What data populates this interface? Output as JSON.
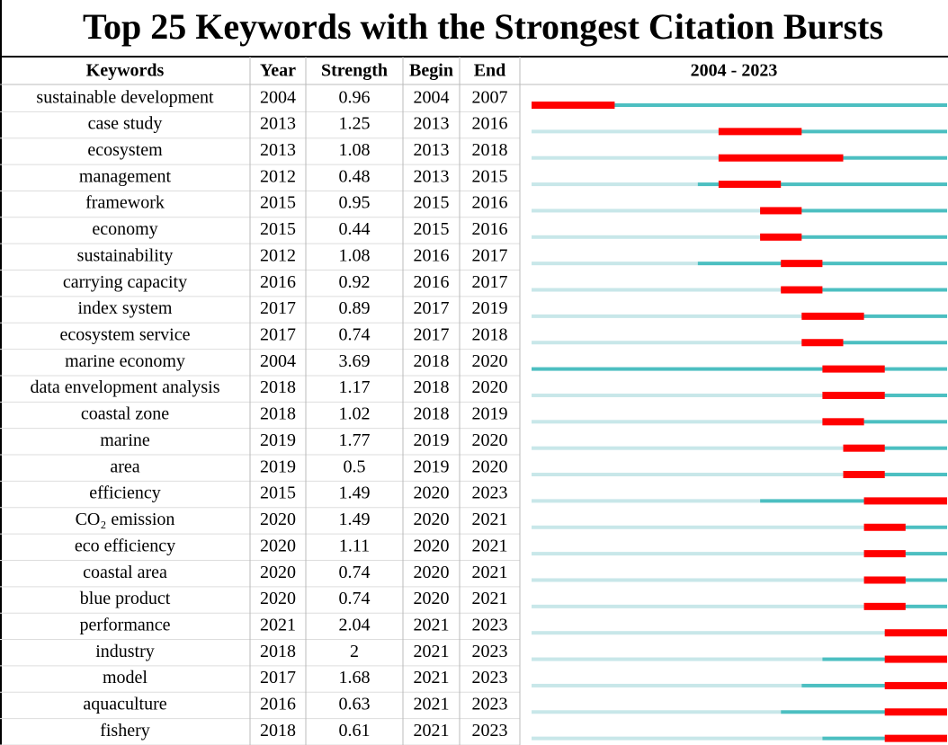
{
  "title": "Top 25 Keywords with the Strongest Citation Bursts",
  "columns": [
    "Keywords",
    "Year",
    "Strength",
    "Begin",
    "End",
    "2004 - 2023"
  ],
  "rows": [
    {
      "keyword": "sustainable development",
      "year": 2004,
      "strength": 0.96,
      "begin": 2004,
      "end": 2007
    },
    {
      "keyword": "case study",
      "year": 2013,
      "strength": 1.25,
      "begin": 2013,
      "end": 2016
    },
    {
      "keyword": "ecosystem",
      "year": 2013,
      "strength": 1.08,
      "begin": 2013,
      "end": 2018
    },
    {
      "keyword": "management",
      "year": 2012,
      "strength": 0.48,
      "begin": 2013,
      "end": 2015
    },
    {
      "keyword": "framework",
      "year": 2015,
      "strength": 0.95,
      "begin": 2015,
      "end": 2016
    },
    {
      "keyword": "economy",
      "year": 2015,
      "strength": 0.44,
      "begin": 2015,
      "end": 2016
    },
    {
      "keyword": "sustainability",
      "year": 2012,
      "strength": 1.08,
      "begin": 2016,
      "end": 2017
    },
    {
      "keyword": "carrying capacity",
      "year": 2016,
      "strength": 0.92,
      "begin": 2016,
      "end": 2017
    },
    {
      "keyword": "index system",
      "year": 2017,
      "strength": 0.89,
      "begin": 2017,
      "end": 2019
    },
    {
      "keyword": "ecosystem service",
      "year": 2017,
      "strength": 0.74,
      "begin": 2017,
      "end": 2018
    },
    {
      "keyword": "marine economy",
      "year": 2004,
      "strength": 3.69,
      "begin": 2018,
      "end": 2020
    },
    {
      "keyword": "data envelopment analysis",
      "year": 2018,
      "strength": 1.17,
      "begin": 2018,
      "end": 2020
    },
    {
      "keyword": "coastal zone",
      "year": 2018,
      "strength": 1.02,
      "begin": 2018,
      "end": 2019
    },
    {
      "keyword": "marine",
      "year": 2019,
      "strength": 1.77,
      "begin": 2019,
      "end": 2020
    },
    {
      "keyword": "area",
      "year": 2019,
      "strength": 0.5,
      "begin": 2019,
      "end": 2020
    },
    {
      "keyword": "efficiency",
      "year": 2015,
      "strength": 1.49,
      "begin": 2020,
      "end": 2023
    },
    {
      "keyword": "CO₂ emission",
      "year": 2020,
      "strength": 1.49,
      "begin": 2020,
      "end": 2021
    },
    {
      "keyword": "eco efficiency",
      "year": 2020,
      "strength": 1.11,
      "begin": 2020,
      "end": 2021
    },
    {
      "keyword": "coastal area",
      "year": 2020,
      "strength": 0.74,
      "begin": 2020,
      "end": 2021
    },
    {
      "keyword": "blue product",
      "year": 2020,
      "strength": 0.74,
      "begin": 2020,
      "end": 2021
    },
    {
      "keyword": "performance",
      "year": 2021,
      "strength": 2.04,
      "begin": 2021,
      "end": 2023
    },
    {
      "keyword": "industry",
      "year": 2018,
      "strength": 2,
      "begin": 2021,
      "end": 2023
    },
    {
      "keyword": "model",
      "year": 2017,
      "strength": 1.68,
      "begin": 2021,
      "end": 2023
    },
    {
      "keyword": "aquaculture",
      "year": 2016,
      "strength": 0.63,
      "begin": 2021,
      "end": 2023
    },
    {
      "keyword": "fishery",
      "year": 2018,
      "strength": 0.61,
      "begin": 2021,
      "end": 2023
    }
  ]
}
